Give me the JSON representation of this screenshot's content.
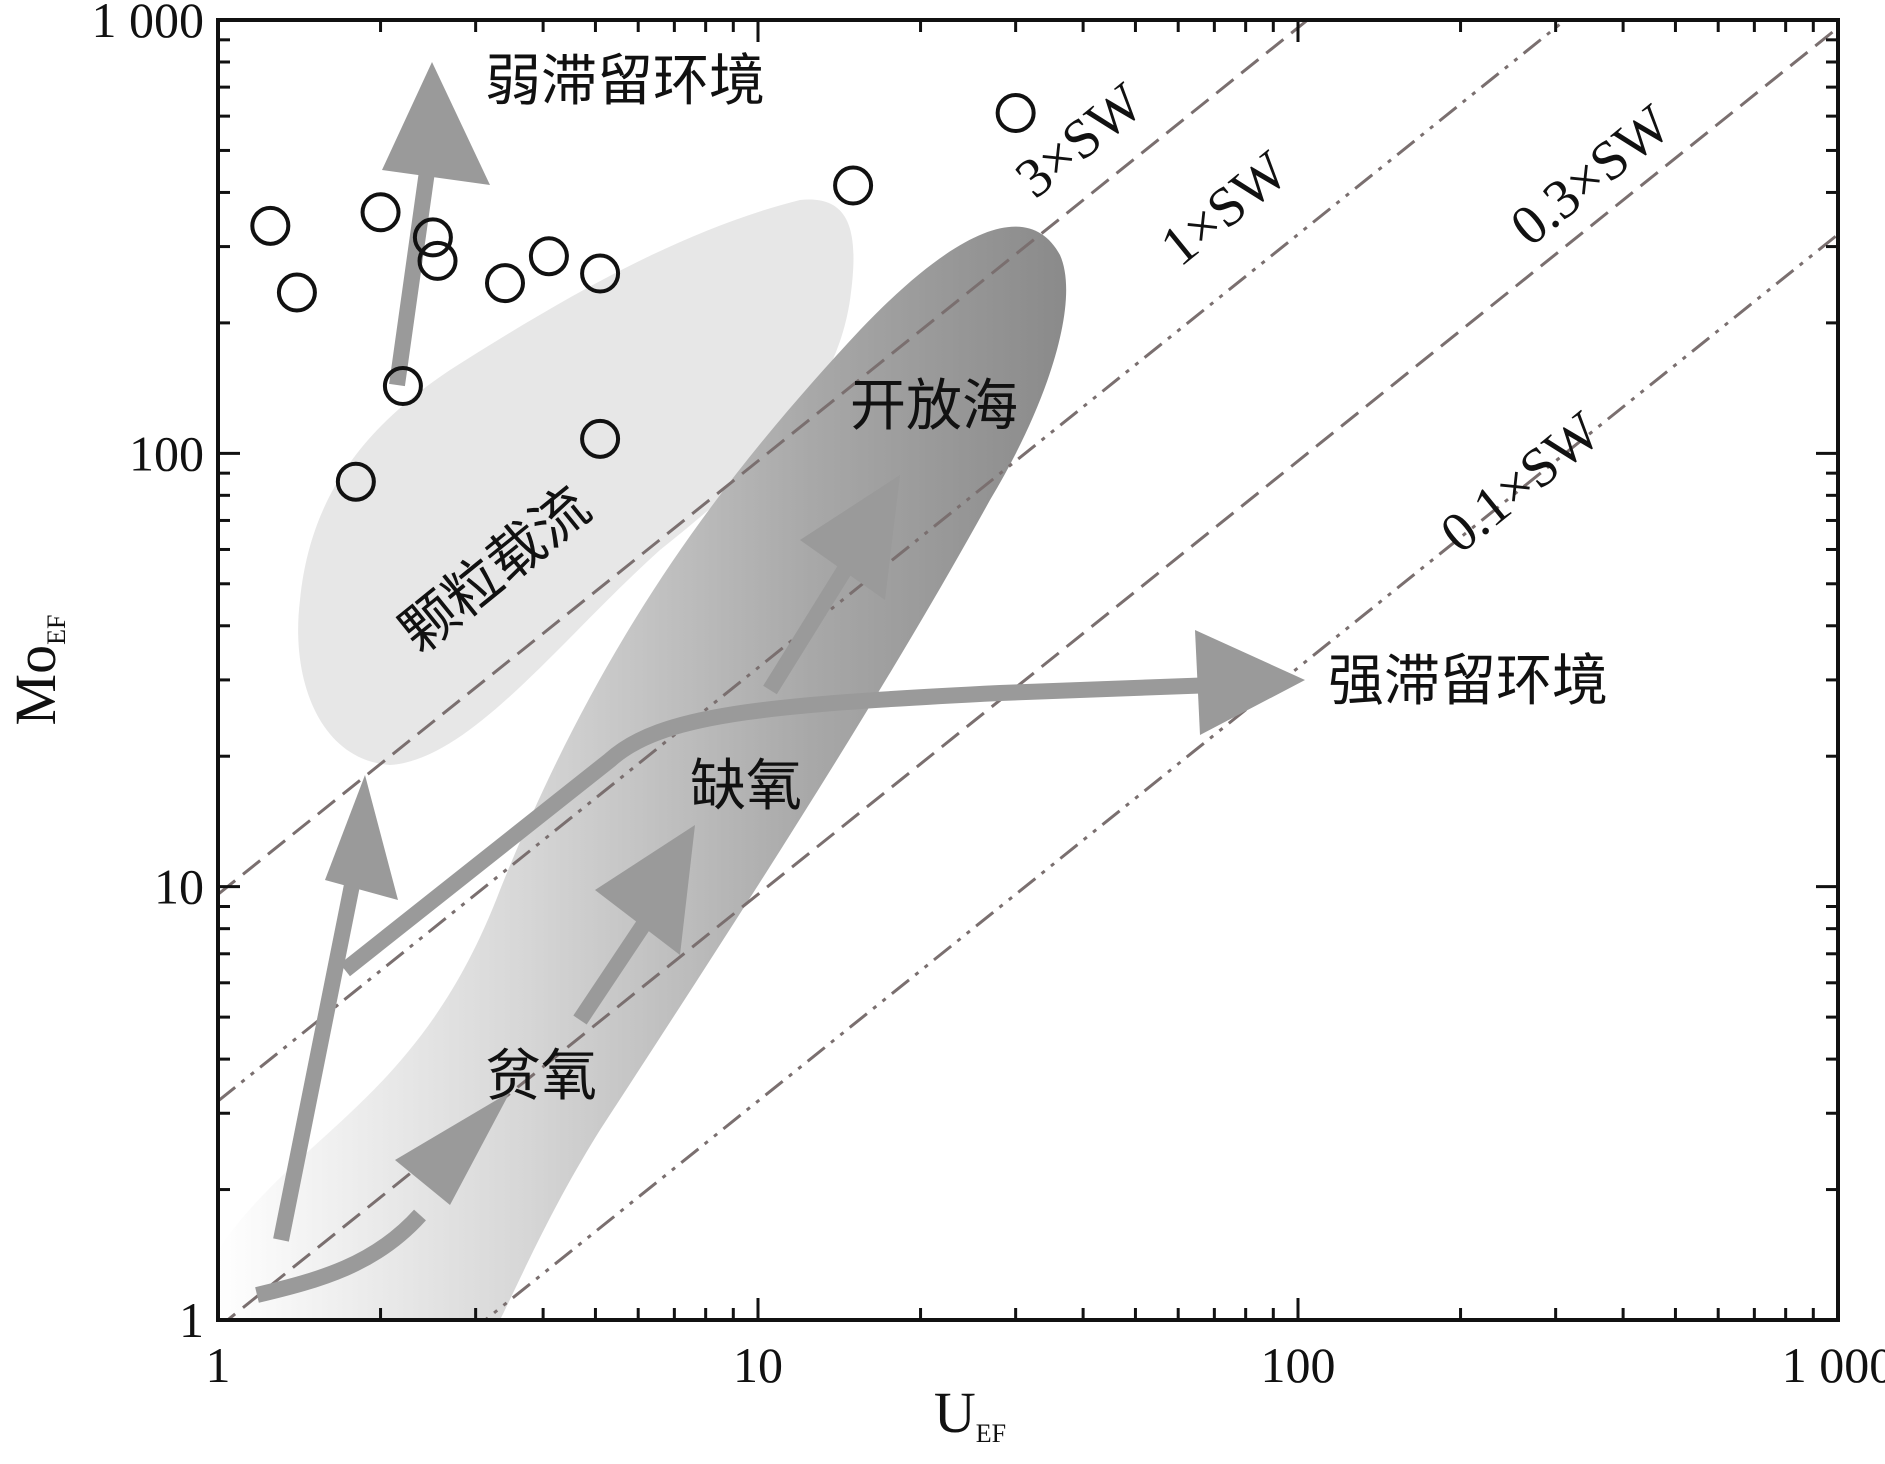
{
  "chart_data": {
    "type": "scatter",
    "xscale": "log",
    "yscale": "log",
    "xlim": [
      1,
      1000
    ],
    "ylim": [
      1,
      1000
    ],
    "xlabel": "U",
    "xlabel_sub": "EF",
    "ylabel": "Mo",
    "ylabel_sub": "EF",
    "x_ticks": [
      "1",
      "10",
      "100",
      "1 000"
    ],
    "y_ticks": [
      "1",
      "10",
      "100",
      "1 000"
    ],
    "grid": false,
    "series": [
      {
        "points": [
          {
            "x": 1.25,
            "y": 335
          },
          {
            "x": 1.4,
            "y": 235
          },
          {
            "x": 1.8,
            "y": 86
          },
          {
            "x": 2.0,
            "y": 360
          },
          {
            "x": 2.2,
            "y": 143
          },
          {
            "x": 2.5,
            "y": 315
          },
          {
            "x": 2.55,
            "y": 278
          },
          {
            "x": 3.4,
            "y": 247
          },
          {
            "x": 4.1,
            "y": 285
          },
          {
            "x": 5.1,
            "y": 260
          },
          {
            "x": 5.1,
            "y": 108
          },
          {
            "x": 15.0,
            "y": 415
          },
          {
            "x": 30.0,
            "y": 610
          }
        ]
      }
    ],
    "reference_lines": [
      {
        "label": "3×SW",
        "slope_ratio": 9.6
      },
      {
        "label": "1×SW",
        "slope_ratio": 3.2
      },
      {
        "label": "0.3×SW",
        "slope_ratio": 0.96
      },
      {
        "label": "0.1×SW",
        "slope_ratio": 0.32
      }
    ],
    "regions": [
      {
        "label": "颗粒载流",
        "color": "#e6e6e6"
      },
      {
        "label": "开放海",
        "color": "#8f8f8f"
      },
      {
        "label": "缺氧"
      },
      {
        "label": "贫氧"
      }
    ],
    "annotations": [
      "弱滞留环境",
      "强滞留环境"
    ]
  }
}
